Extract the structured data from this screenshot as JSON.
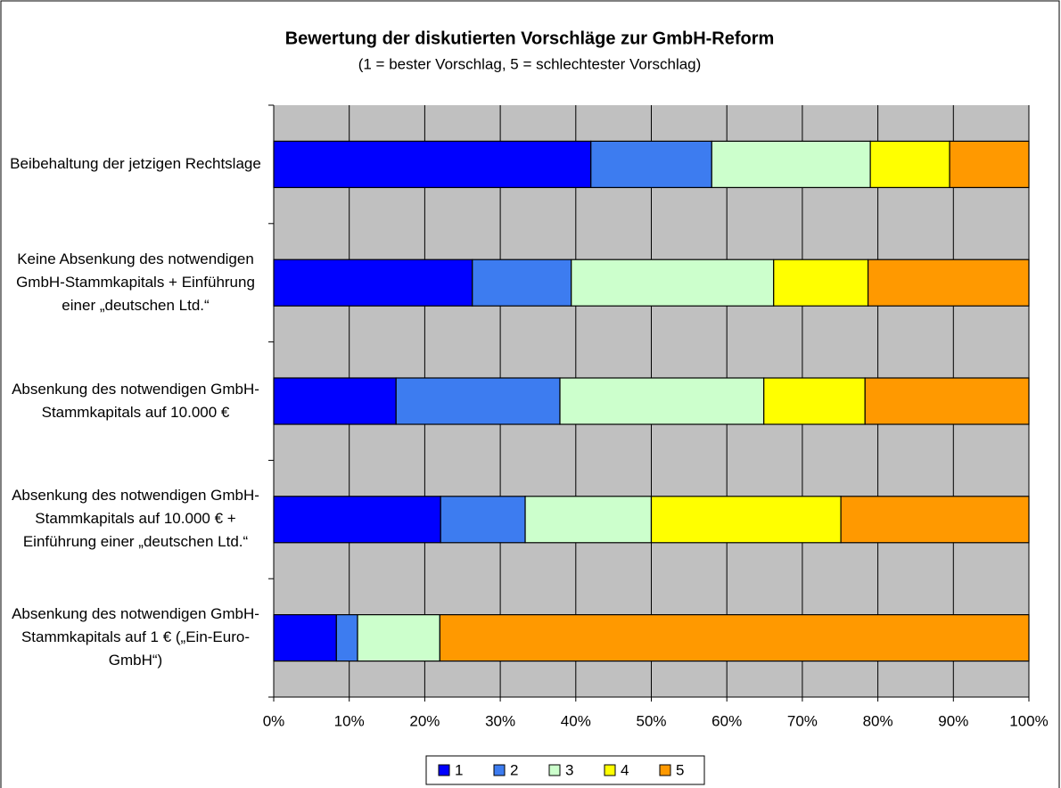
{
  "chart_data": {
    "type": "stacked_barh",
    "title": "Bewertung der diskutierten Vorschläge zur GmbH-Reform",
    "subtitle": "(1 = bester Vorschlag, 5 = schlechtester Vorschlag)",
    "categories": [
      "Beibehaltung der jetzigen Rechtslage",
      "Keine Absenkung des notwendigen GmbH-Stammkapitals + Einführung einer „deutschen Ltd.“",
      "Absenkung des notwendigen GmbH-Stammkapitals auf 10.000 €",
      "Absenkung des notwendigen GmbH-Stammkapitals auf 10.000 € + Einführung einer „deutschen Ltd.“",
      "Absenkung des notwendigen GmbH-Stammkapitals auf 1 € („Ein-Euro-GmbH“)"
    ],
    "series": [
      {
        "name": "1",
        "color": "#0000ff",
        "values": [
          42,
          26.3,
          16.2,
          22.1,
          8.3
        ]
      },
      {
        "name": "2",
        "color": "#3d7cf0",
        "values": [
          16,
          13.1,
          21.7,
          11.2,
          2.8
        ]
      },
      {
        "name": "3",
        "color": "#ccffcc",
        "values": [
          21,
          26.8,
          27,
          16.7,
          10.9
        ]
      },
      {
        "name": "4",
        "color": "#ffff00",
        "values": [
          10.5,
          12.5,
          13.4,
          25.1,
          0
        ]
      },
      {
        "name": "5",
        "color": "#ff9900",
        "values": [
          10.5,
          21.3,
          21.7,
          24.9,
          78
        ]
      }
    ],
    "xlim": [
      0,
      100
    ],
    "xticks": [
      {
        "value": 0,
        "label": "0%"
      },
      {
        "value": 10,
        "label": "10%"
      },
      {
        "value": 20,
        "label": "20%"
      },
      {
        "value": 30,
        "label": "30%"
      },
      {
        "value": 40,
        "label": "40%"
      },
      {
        "value": 50,
        "label": "50%"
      },
      {
        "value": 60,
        "label": "60%"
      },
      {
        "value": 70,
        "label": "70%"
      },
      {
        "value": 80,
        "label": "80%"
      },
      {
        "value": 90,
        "label": "90%"
      },
      {
        "value": 100,
        "label": "100%"
      }
    ],
    "grid": true,
    "legend": "bottom"
  }
}
